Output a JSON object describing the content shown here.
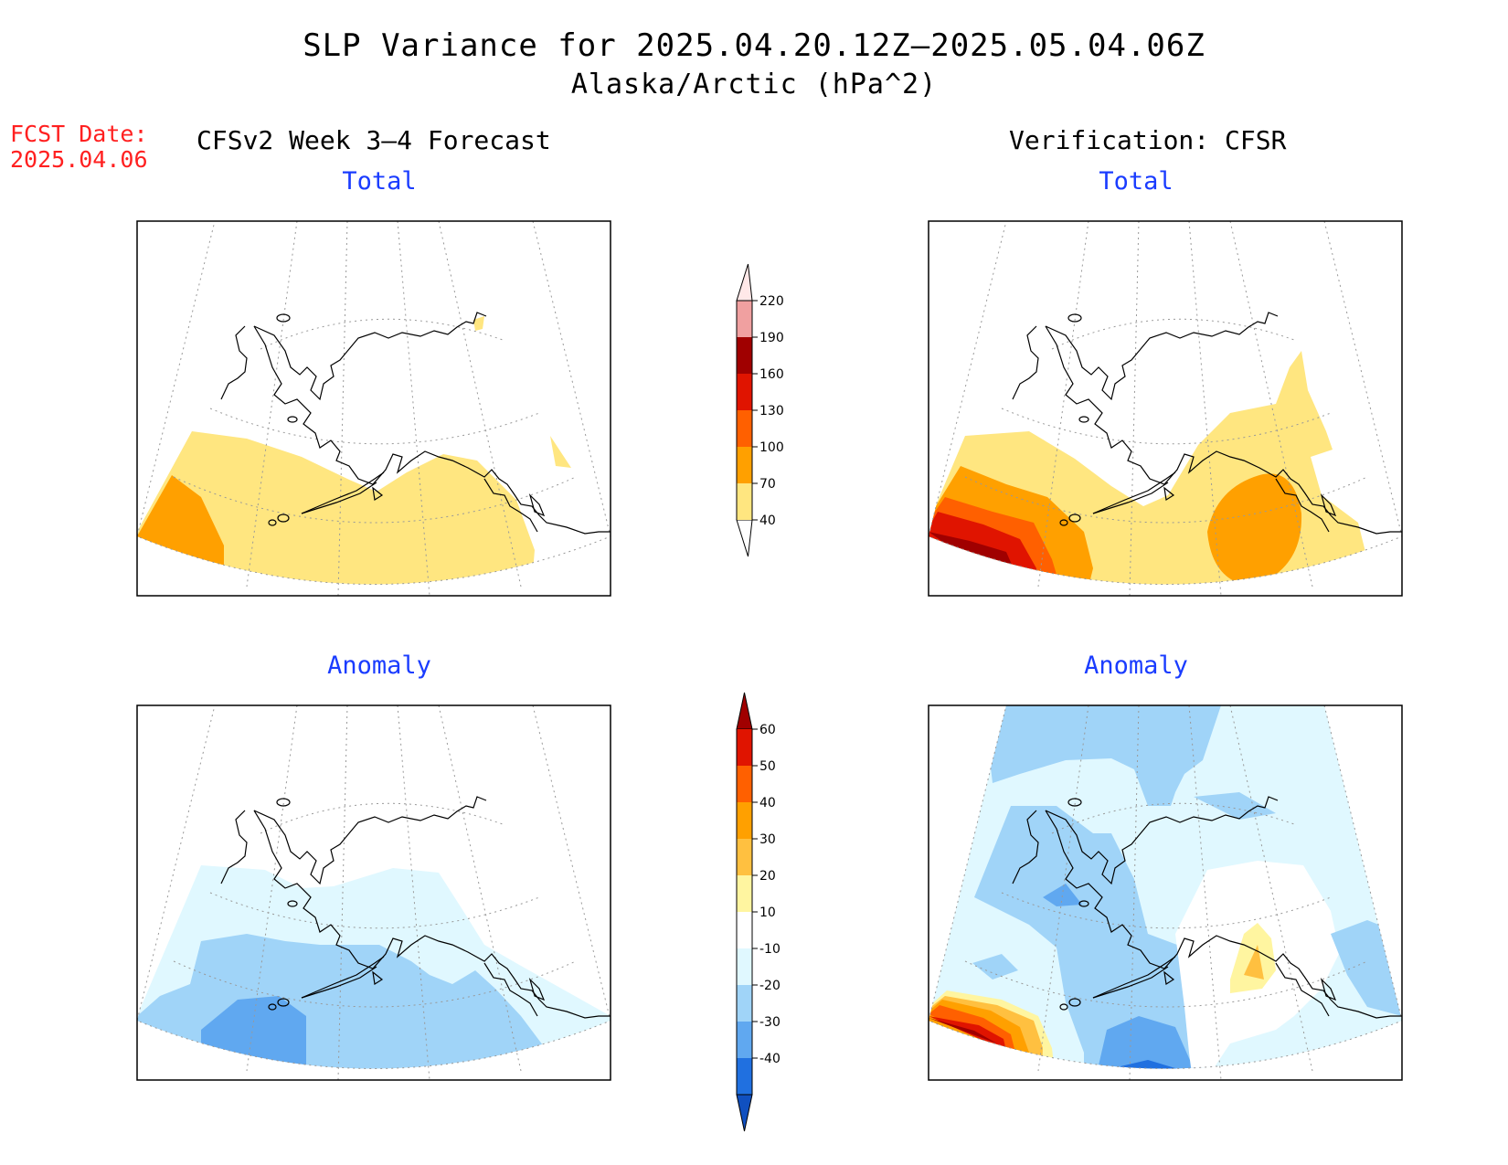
{
  "header": {
    "title": "SLP Variance for 2025.04.20.12Z–2025.05.04.06Z",
    "subtitle": "Alaska/Arctic (hPa^2)"
  },
  "fcst_date": {
    "label": "FCST Date:",
    "value": "2025.04.06"
  },
  "columns": {
    "left": "CFSv2 Week 3–4 Forecast",
    "right": "Verification: CFSR"
  },
  "panels": {
    "forecast_total": "Total",
    "forecast_anomaly": "Anomaly",
    "verification_total": "Total",
    "verification_anomaly": "Anomaly"
  },
  "colorbars": {
    "total": {
      "levels": [
        "40",
        "70",
        "100",
        "130",
        "160",
        "190",
        "220"
      ],
      "colors": [
        "#ffe680",
        "#ffa000",
        "#ff6000",
        "#e01400",
        "#a00000",
        "#f0a0a0",
        "#ffe8e8"
      ]
    },
    "anomaly": {
      "levels": [
        "60",
        "50",
        "40",
        "30",
        "20",
        "10",
        "-10",
        "-20",
        "-30",
        "-40"
      ],
      "colors": [
        "#a00000",
        "#e01400",
        "#ff6000",
        "#ffa000",
        "#ffc040",
        "#fff5a0",
        "#ffffff",
        "#e0f8ff",
        "#a0d4f8",
        "#60a8f0",
        "#2070e0",
        "#1050c0"
      ]
    }
  },
  "map_colors": {
    "tot_40_70": "#ffe680",
    "tot_70_100": "#ffa000",
    "tot_100_130": "#ff6000",
    "tot_130_160": "#e01400",
    "tot_160_190": "#a00000",
    "anom_pos_10_20": "#fff5a0",
    "anom_pos_20_30": "#ffc040",
    "anom_pos_30_40": "#ffa000",
    "anom_pos_40_50": "#ff6000",
    "anom_pos_50_60": "#e01400",
    "anom_pos_60": "#a00000",
    "anom_neg_10_20": "#e0f8ff",
    "anom_neg_20_30": "#a0d4f8",
    "anom_neg_30_40": "#60a8f0",
    "anom_neg_40": "#2070e0",
    "anom_neg_extreme": "#1050c0"
  }
}
